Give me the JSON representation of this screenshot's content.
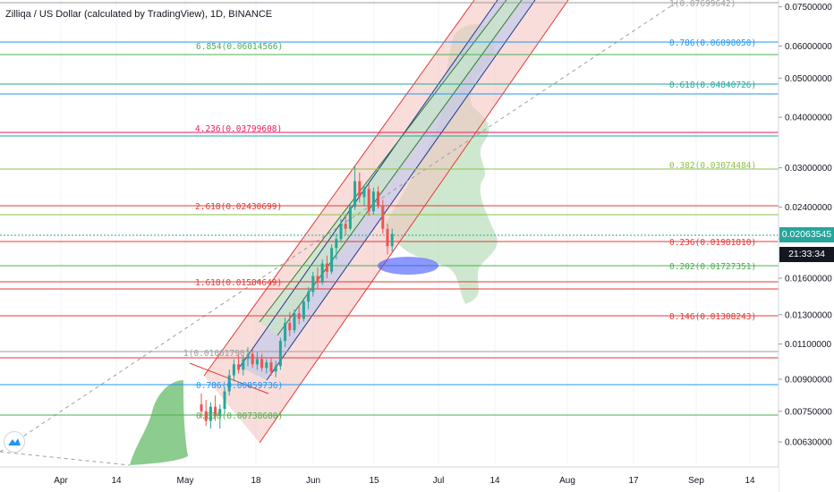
{
  "title": "Zilliqa / US Dollar (calculated by TradingView), 1D, BINANCE",
  "axis": {
    "y_ticks": [
      "0.07500000",
      "0.06000000",
      "0.05000000",
      "0.04000000",
      "0.03000000",
      "0.02400000",
      "0.02000000",
      "0.01600000",
      "0.01300000",
      "0.01100000",
      "0.00900000",
      "0.00750000",
      "0.00630000"
    ],
    "x_ticks": [
      "Apr",
      "14",
      "May",
      "18",
      "Jun",
      "15",
      "Jul",
      "14",
      "Aug",
      "17",
      "Sep",
      "14"
    ]
  },
  "price_tags": {
    "current_price": "0.02063545",
    "countdown": "21:33:34"
  },
  "colors": {
    "candle_up": "#26a69a",
    "candle_down": "#ef5350",
    "channel_outer_fill": "#f4c7c3",
    "channel_inner_fill": "#c5cae9",
    "channel_green_fill": "#c8e6c9",
    "rocket_fill": "#a5d6a7",
    "target_ellipse": "#3f51ff",
    "axis_text": "#131722",
    "price_tag_bg": "#26a69a",
    "countdown_bg": "#131722"
  },
  "fib_right": [
    {
      "label": "1(0.07699642)",
      "color": "#9e9e9e"
    },
    {
      "label": "0.786(0.06098050)",
      "color": "#2196f3"
    },
    {
      "label": "0.618(0.04840726)",
      "color": "#26a69a"
    },
    {
      "label": "0.382(0.03074484)",
      "color": "#8bc34a"
    },
    {
      "label": "0.236(0.01981810)",
      "color": "#e53935"
    },
    {
      "label": "0.202(0.01727351)",
      "color": "#4caf50"
    },
    {
      "label": "0.146(0.01308243)",
      "color": "#e53935"
    }
  ],
  "fib_left": [
    {
      "label": "6.854(0.06014566)",
      "color": "#4caf50"
    },
    {
      "label": "4.236(0.03799608)",
      "color": "#e91e63"
    },
    {
      "label": "2.618(0.02430699)",
      "color": "#e53935"
    },
    {
      "label": "1.618(0.01584649)",
      "color": "#e53935"
    },
    {
      "label": "1(0.01061790)",
      "color": "#9e9e9e"
    },
    {
      "label": "0.786(0.00859736)",
      "color": "#2196f3"
    },
    {
      "label": "0.618(0.00738600)",
      "color": "#4caf50"
    }
  ],
  "chart_data": {
    "type": "candlestick",
    "title": "Zilliqa / US Dollar (calculated by TradingView), 1D, BINANCE",
    "y_scale": "log",
    "ylim": [
      0.0058,
      0.078
    ],
    "x_range": [
      "Mar 26",
      "Sep 19"
    ],
    "current_price": 0.02063545,
    "candles": [
      {
        "o": 0.0078,
        "h": 0.0083,
        "l": 0.0072,
        "c": 0.0075
      },
      {
        "o": 0.0075,
        "h": 0.008,
        "l": 0.0069,
        "c": 0.0071
      },
      {
        "o": 0.0071,
        "h": 0.0079,
        "l": 0.0068,
        "c": 0.0077
      },
      {
        "o": 0.0077,
        "h": 0.0082,
        "l": 0.0071,
        "c": 0.0073
      },
      {
        "o": 0.0073,
        "h": 0.0078,
        "l": 0.0068,
        "c": 0.0076
      },
      {
        "o": 0.0076,
        "h": 0.0086,
        "l": 0.0074,
        "c": 0.0084
      },
      {
        "o": 0.0084,
        "h": 0.0095,
        "l": 0.0082,
        "c": 0.0092
      },
      {
        "o": 0.0092,
        "h": 0.0101,
        "l": 0.0089,
        "c": 0.0098
      },
      {
        "o": 0.0098,
        "h": 0.0104,
        "l": 0.0093,
        "c": 0.0095
      },
      {
        "o": 0.0095,
        "h": 0.0103,
        "l": 0.0092,
        "c": 0.0101
      },
      {
        "o": 0.0101,
        "h": 0.0108,
        "l": 0.0097,
        "c": 0.0104
      },
      {
        "o": 0.0104,
        "h": 0.0107,
        "l": 0.0096,
        "c": 0.0098
      },
      {
        "o": 0.0098,
        "h": 0.0105,
        "l": 0.0095,
        "c": 0.0101
      },
      {
        "o": 0.0101,
        "h": 0.0104,
        "l": 0.0094,
        "c": 0.0096
      },
      {
        "o": 0.0096,
        "h": 0.0101,
        "l": 0.0093,
        "c": 0.0099
      },
      {
        "o": 0.0099,
        "h": 0.0102,
        "l": 0.0092,
        "c": 0.0094
      },
      {
        "o": 0.0094,
        "h": 0.01,
        "l": 0.0091,
        "c": 0.0097
      },
      {
        "o": 0.0097,
        "h": 0.0114,
        "l": 0.0095,
        "c": 0.0112
      },
      {
        "o": 0.0112,
        "h": 0.0128,
        "l": 0.0108,
        "c": 0.0124
      },
      {
        "o": 0.0124,
        "h": 0.0132,
        "l": 0.0115,
        "c": 0.0119
      },
      {
        "o": 0.0119,
        "h": 0.0134,
        "l": 0.0117,
        "c": 0.0131
      },
      {
        "o": 0.0131,
        "h": 0.0137,
        "l": 0.0123,
        "c": 0.0127
      },
      {
        "o": 0.0127,
        "h": 0.0143,
        "l": 0.0125,
        "c": 0.014
      },
      {
        "o": 0.014,
        "h": 0.0152,
        "l": 0.0134,
        "c": 0.0148
      },
      {
        "o": 0.0148,
        "h": 0.0166,
        "l": 0.0144,
        "c": 0.0162
      },
      {
        "o": 0.0162,
        "h": 0.017,
        "l": 0.015,
        "c": 0.0156
      },
      {
        "o": 0.0156,
        "h": 0.0178,
        "l": 0.0154,
        "c": 0.0174
      },
      {
        "o": 0.0174,
        "h": 0.0182,
        "l": 0.016,
        "c": 0.0166
      },
      {
        "o": 0.0166,
        "h": 0.0194,
        "l": 0.0164,
        "c": 0.019
      },
      {
        "o": 0.019,
        "h": 0.0206,
        "l": 0.0178,
        "c": 0.02
      },
      {
        "o": 0.02,
        "h": 0.0224,
        "l": 0.0196,
        "c": 0.0218
      },
      {
        "o": 0.0218,
        "h": 0.023,
        "l": 0.0204,
        "c": 0.0212
      },
      {
        "o": 0.0212,
        "h": 0.0246,
        "l": 0.021,
        "c": 0.024
      },
      {
        "o": 0.024,
        "h": 0.0302,
        "l": 0.0236,
        "c": 0.0278
      },
      {
        "o": 0.0278,
        "h": 0.0292,
        "l": 0.0246,
        "c": 0.0254
      },
      {
        "o": 0.0254,
        "h": 0.0272,
        "l": 0.0242,
        "c": 0.0266
      },
      {
        "o": 0.0266,
        "h": 0.0274,
        "l": 0.0228,
        "c": 0.0234
      },
      {
        "o": 0.0234,
        "h": 0.0268,
        "l": 0.023,
        "c": 0.0262
      },
      {
        "o": 0.0262,
        "h": 0.027,
        "l": 0.0238,
        "c": 0.0242
      },
      {
        "o": 0.0242,
        "h": 0.025,
        "l": 0.0206,
        "c": 0.0212
      },
      {
        "o": 0.0212,
        "h": 0.0218,
        "l": 0.0183,
        "c": 0.0192
      },
      {
        "o": 0.0192,
        "h": 0.0212,
        "l": 0.0186,
        "c": 0.0206
      }
    ]
  }
}
